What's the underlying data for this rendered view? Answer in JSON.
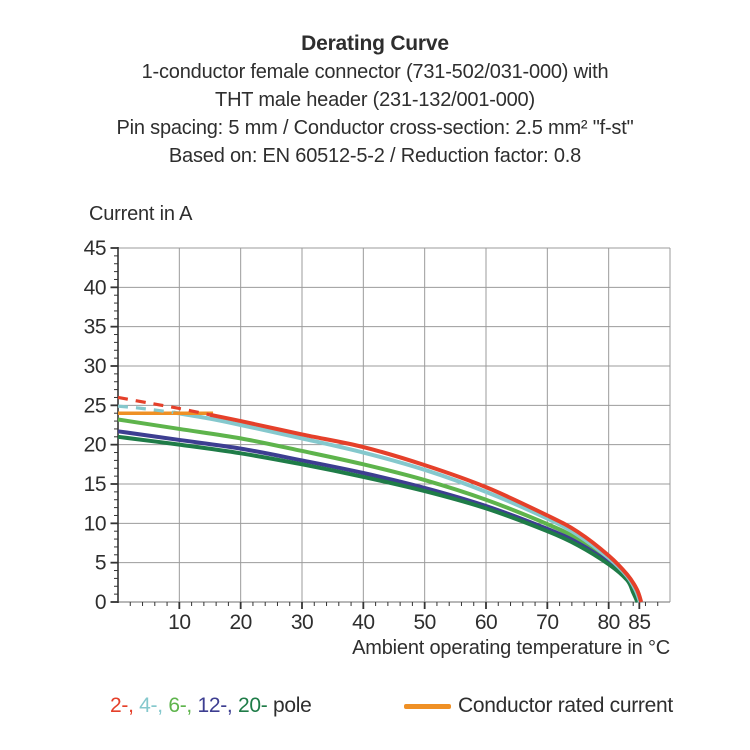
{
  "header": {
    "title": "Derating Curve",
    "subtitle_lines": [
      "1-conductor female connector (731-502/031-000) with",
      "THT male header (231-132/001-000)",
      "Pin spacing: 5 mm / Conductor cross-section: 2.5 mm² \"f-st\"",
      "Based on: EN 60512-5-2 / Reduction factor: 0.8"
    ]
  },
  "chart_data": {
    "type": "line",
    "title": "Derating Curve",
    "ylabel": "Current in A",
    "xlabel": "Ambient operating temperature in °C",
    "xlim": [
      0,
      90
    ],
    "ylim": [
      0,
      45
    ],
    "x_major_ticks": [
      10,
      20,
      30,
      40,
      50,
      60,
      70,
      80,
      85
    ],
    "y_major_ticks": [
      0,
      5,
      10,
      15,
      20,
      25,
      30,
      35,
      40,
      45
    ],
    "x_minor_step": 2,
    "y_minor_step": 1,
    "grid": true,
    "grid_color": "#9b9b9b",
    "axis_color": "#333333",
    "tick_label_color": "#2e2e2e",
    "series": [
      {
        "name": "6-pole",
        "color": "#5eb44c",
        "style": "solid",
        "points": [
          [
            0,
            23.2
          ],
          [
            10,
            22.0
          ],
          [
            20,
            20.8
          ],
          [
            30,
            19.2
          ],
          [
            40,
            17.5
          ],
          [
            50,
            15.5
          ],
          [
            60,
            13.0
          ],
          [
            70,
            9.9
          ],
          [
            75,
            8.0
          ],
          [
            80,
            5.3
          ],
          [
            83,
            3.1
          ],
          [
            84.2,
            1.4
          ],
          [
            84.9,
            0
          ]
        ]
      },
      {
        "name": "12-pole",
        "color": "#3d3e91",
        "style": "solid",
        "points": [
          [
            0,
            21.7
          ],
          [
            10,
            20.6
          ],
          [
            20,
            19.5
          ],
          [
            30,
            18.0
          ],
          [
            40,
            16.4
          ],
          [
            50,
            14.5
          ],
          [
            60,
            12.2
          ],
          [
            70,
            9.3
          ],
          [
            75,
            7.5
          ],
          [
            80,
            5.0
          ],
          [
            83,
            2.9
          ],
          [
            84.1,
            1.3
          ],
          [
            84.8,
            0
          ]
        ]
      },
      {
        "name": "20-pole",
        "color": "#1f7c48",
        "style": "solid",
        "points": [
          [
            0,
            21.0
          ],
          [
            10,
            20.0
          ],
          [
            20,
            18.9
          ],
          [
            30,
            17.5
          ],
          [
            40,
            15.9
          ],
          [
            50,
            14.1
          ],
          [
            60,
            11.9
          ],
          [
            70,
            9.0
          ],
          [
            75,
            7.2
          ],
          [
            80,
            4.8
          ],
          [
            83,
            2.8
          ],
          [
            84.0,
            1.2
          ],
          [
            84.7,
            0
          ]
        ]
      },
      {
        "name": "4-pole",
        "color": "#85c8cd",
        "style": "solid",
        "points": [
          [
            9,
            24.1
          ],
          [
            15,
            23.3
          ],
          [
            20,
            22.5
          ],
          [
            30,
            20.8
          ],
          [
            40,
            19.0
          ],
          [
            50,
            16.8
          ],
          [
            60,
            14.0
          ],
          [
            70,
            10.6
          ],
          [
            75,
            8.5
          ],
          [
            80,
            5.6
          ],
          [
            83,
            3.3
          ],
          [
            84.4,
            1.5
          ],
          [
            85.1,
            0
          ]
        ]
      },
      {
        "name": "conductor-rated-current",
        "color": "#ef9025",
        "style": "solid-thin",
        "points": [
          [
            0,
            24
          ],
          [
            15.5,
            24
          ]
        ]
      },
      {
        "name": "2-pole",
        "color": "#e5402a",
        "style": "solid",
        "points": [
          [
            15,
            23.8
          ],
          [
            20,
            23.0
          ],
          [
            30,
            21.3
          ],
          [
            40,
            19.7
          ],
          [
            50,
            17.4
          ],
          [
            60,
            14.6
          ],
          [
            70,
            11.0
          ],
          [
            75,
            8.9
          ],
          [
            80,
            5.9
          ],
          [
            83,
            3.5
          ],
          [
            84.6,
            1.6
          ],
          [
            85.3,
            0
          ]
        ]
      },
      {
        "name": "2-pole-above-rated",
        "color": "#e5402a",
        "style": "dashed",
        "points": [
          [
            0,
            26.0
          ],
          [
            5,
            25.3
          ],
          [
            10,
            24.6
          ],
          [
            15,
            23.8
          ]
        ]
      },
      {
        "name": "4-pole-above-rated",
        "color": "#85c8cd",
        "style": "dashed",
        "points": [
          [
            0,
            24.9
          ],
          [
            4,
            24.6
          ],
          [
            9,
            24.1
          ]
        ]
      }
    ]
  },
  "legend": {
    "pole_items": [
      {
        "label": "2-",
        "color": "#e5402a"
      },
      {
        "label": "4-",
        "color": "#85c8cd"
      },
      {
        "label": "6-",
        "color": "#5eb44c"
      },
      {
        "label": "12-",
        "color": "#3d3e91"
      },
      {
        "label": "20-",
        "color": "#1f7c48"
      }
    ],
    "separator": ", ",
    "pole_suffix": " pole",
    "pole_suffix_color": "#2e2e2e",
    "rated": {
      "label": "Conductor rated current",
      "color": "#ef9025"
    }
  }
}
